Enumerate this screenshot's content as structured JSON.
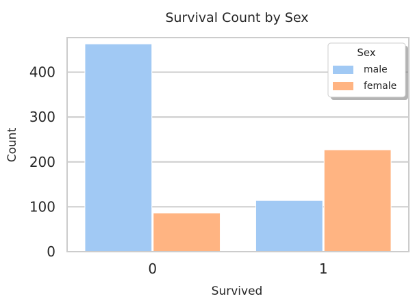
{
  "chart_data": {
    "type": "bar",
    "title": "Survival Count by Sex",
    "xlabel": "Survived",
    "ylabel": "Count",
    "categories": [
      "0",
      "1"
    ],
    "series": [
      {
        "name": "male",
        "values": [
          463,
          114
        ],
        "color": "#a1c9f4"
      },
      {
        "name": "female",
        "values": [
          86,
          227
        ],
        "color": "#ffb482"
      }
    ],
    "yticks": [
      0,
      100,
      200,
      300,
      400
    ],
    "ylim": [
      0,
      477
    ],
    "grid": true,
    "legend": {
      "title": "Sex",
      "placement": "top-right"
    }
  }
}
